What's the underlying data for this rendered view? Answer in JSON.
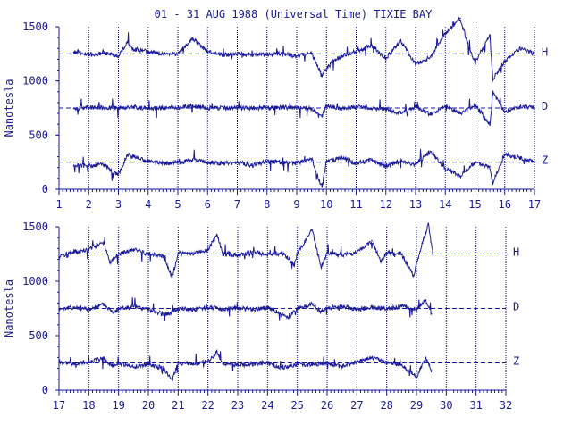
{
  "chart_data": {
    "type": "line",
    "title": "01 - 31 AUG 1988 (Universal Time) TIXIE BAY",
    "ylabel": "Nanotesla",
    "colors": {
      "axis": "#1a1a9a",
      "trace": "#1a1a9a",
      "background": "#ffffff"
    },
    "grid": "vertical-dotted-day-lines",
    "component_labels": [
      "H",
      "D",
      "Z"
    ],
    "baselines_nT": {
      "H": 1250,
      "D": 750,
      "Z": 250
    },
    "panels": [
      {
        "name": "days-1-to-17",
        "xlim": [
          1,
          17
        ],
        "ylim": [
          0,
          1500
        ],
        "x_ticks": [
          "1",
          "2",
          "3",
          "4",
          "5",
          "6",
          "7",
          "8",
          "9",
          "10",
          "11",
          "12",
          "13",
          "14",
          "15",
          "16",
          "17"
        ],
        "y_ticks": [
          "0",
          "500",
          "1000",
          "1500"
        ],
        "series": [
          {
            "name": "H",
            "baseline": 1250,
            "samples": [
              [
                1.5,
                1265
              ],
              [
                2.0,
                1245
              ],
              [
                2.5,
                1255
              ],
              [
                3.0,
                1230
              ],
              [
                3.3,
                1360
              ],
              [
                3.5,
                1290
              ],
              [
                3.8,
                1280
              ],
              [
                4.3,
                1255
              ],
              [
                5.0,
                1250
              ],
              [
                5.5,
                1390
              ],
              [
                6.0,
                1270
              ],
              [
                6.5,
                1240
              ],
              [
                7.0,
                1250
              ],
              [
                7.5,
                1240
              ],
              [
                8.0,
                1245
              ],
              [
                8.5,
                1250
              ],
              [
                9.0,
                1230
              ],
              [
                9.5,
                1255
              ],
              [
                9.85,
                1050
              ],
              [
                9.95,
                1100
              ],
              [
                10.3,
                1200
              ],
              [
                10.8,
                1260
              ],
              [
                11.2,
                1290
              ],
              [
                11.5,
                1330
              ],
              [
                12.0,
                1210
              ],
              [
                12.5,
                1370
              ],
              [
                13.0,
                1150
              ],
              [
                13.5,
                1220
              ],
              [
                14.0,
                1440
              ],
              [
                14.5,
                1580
              ],
              [
                14.8,
                1300
              ],
              [
                15.0,
                1170
              ],
              [
                15.5,
                1420
              ],
              [
                15.6,
                1020
              ],
              [
                16.0,
                1180
              ],
              [
                16.5,
                1300
              ],
              [
                17.0,
                1250
              ]
            ]
          },
          {
            "name": "D",
            "baseline": 750,
            "samples": [
              [
                1.5,
                745
              ],
              [
                2.0,
                755
              ],
              [
                3.0,
                750
              ],
              [
                3.5,
                760
              ],
              [
                4.0,
                745
              ],
              [
                5.0,
                755
              ],
              [
                5.5,
                770
              ],
              [
                6.0,
                750
              ],
              [
                7.0,
                748
              ],
              [
                8.0,
                752
              ],
              [
                9.0,
                755
              ],
              [
                9.5,
                740
              ],
              [
                9.85,
                670
              ],
              [
                10.0,
                770
              ],
              [
                10.5,
                745
              ],
              [
                11.0,
                760
              ],
              [
                12.0,
                740
              ],
              [
                12.5,
                700
              ],
              [
                13.0,
                760
              ],
              [
                13.5,
                690
              ],
              [
                14.0,
                770
              ],
              [
                14.5,
                700
              ],
              [
                15.0,
                780
              ],
              [
                15.5,
                600
              ],
              [
                15.6,
                900
              ],
              [
                16.0,
                710
              ],
              [
                16.5,
                760
              ],
              [
                17.0,
                750
              ]
            ]
          },
          {
            "name": "Z",
            "baseline": 250,
            "samples": [
              [
                1.5,
                215
              ],
              [
                2.0,
                220
              ],
              [
                2.5,
                225
              ],
              [
                3.0,
                130
              ],
              [
                3.3,
                320
              ],
              [
                3.5,
                300
              ],
              [
                4.0,
                260
              ],
              [
                4.5,
                240
              ],
              [
                5.0,
                240
              ],
              [
                5.5,
                270
              ],
              [
                6.0,
                250
              ],
              [
                6.5,
                240
              ],
              [
                7.0,
                250
              ],
              [
                7.5,
                220
              ],
              [
                8.0,
                255
              ],
              [
                8.5,
                250
              ],
              [
                9.0,
                240
              ],
              [
                9.5,
                280
              ],
              [
                9.85,
                20
              ],
              [
                10.0,
                260
              ],
              [
                10.5,
                290
              ],
              [
                11.0,
                240
              ],
              [
                11.5,
                270
              ],
              [
                12.0,
                210
              ],
              [
                12.5,
                260
              ],
              [
                13.0,
                230
              ],
              [
                13.5,
                350
              ],
              [
                14.0,
                190
              ],
              [
                14.5,
                120
              ],
              [
                15.0,
                250
              ],
              [
                15.5,
                210
              ],
              [
                15.6,
                60
              ],
              [
                16.0,
                320
              ],
              [
                16.5,
                290
              ],
              [
                17.0,
                250
              ]
            ]
          }
        ]
      },
      {
        "name": "days-17-to-32",
        "xlim": [
          17,
          32
        ],
        "ylim": [
          0,
          1500
        ],
        "x_ticks": [
          "17",
          "18",
          "19",
          "20",
          "21",
          "22",
          "23",
          "24",
          "25",
          "26",
          "27",
          "28",
          "29",
          "30",
          "31",
          "32"
        ],
        "y_ticks": [
          "0",
          "500",
          "1000",
          "1500"
        ],
        "series": [
          {
            "name": "H",
            "baseline": 1250,
            "samples": [
              [
                17.0,
                1220
              ],
              [
                17.5,
                1270
              ],
              [
                18.0,
                1290
              ],
              [
                18.5,
                1360
              ],
              [
                18.7,
                1170
              ],
              [
                19.0,
                1250
              ],
              [
                19.5,
                1290
              ],
              [
                20.0,
                1250
              ],
              [
                20.5,
                1230
              ],
              [
                20.8,
                1040
              ],
              [
                21.0,
                1260
              ],
              [
                21.5,
                1250
              ],
              [
                22.0,
                1290
              ],
              [
                22.3,
                1430
              ],
              [
                22.5,
                1250
              ],
              [
                23.0,
                1240
              ],
              [
                23.5,
                1270
              ],
              [
                24.0,
                1240
              ],
              [
                24.5,
                1260
              ],
              [
                24.9,
                1150
              ],
              [
                25.0,
                1250
              ],
              [
                25.5,
                1470
              ],
              [
                25.8,
                1130
              ],
              [
                26.0,
                1260
              ],
              [
                26.5,
                1240
              ],
              [
                27.0,
                1260
              ],
              [
                27.5,
                1370
              ],
              [
                27.8,
                1180
              ],
              [
                28.0,
                1260
              ],
              [
                28.5,
                1250
              ],
              [
                28.9,
                1050
              ],
              [
                29.2,
                1350
              ],
              [
                29.4,
                1530
              ],
              [
                29.55,
                1250
              ]
            ]
          },
          {
            "name": "D",
            "baseline": 750,
            "samples": [
              [
                17.0,
                745
              ],
              [
                17.5,
                760
              ],
              [
                18.0,
                740
              ],
              [
                18.5,
                790
              ],
              [
                18.8,
                720
              ],
              [
                19.0,
                750
              ],
              [
                19.5,
                765
              ],
              [
                20.0,
                740
              ],
              [
                20.6,
                690
              ],
              [
                21.0,
                750
              ],
              [
                21.5,
                740
              ],
              [
                22.0,
                760
              ],
              [
                22.5,
                745
              ],
              [
                23.0,
                755
              ],
              [
                23.5,
                740
              ],
              [
                24.0,
                760
              ],
              [
                24.7,
                660
              ],
              [
                25.0,
                750
              ],
              [
                25.5,
                790
              ],
              [
                25.8,
                720
              ],
              [
                26.0,
                750
              ],
              [
                26.5,
                770
              ],
              [
                27.0,
                740
              ],
              [
                27.5,
                760
              ],
              [
                28.0,
                745
              ],
              [
                28.5,
                770
              ],
              [
                29.0,
                745
              ],
              [
                29.3,
                830
              ],
              [
                29.5,
                700
              ]
            ]
          },
          {
            "name": "Z",
            "baseline": 250,
            "samples": [
              [
                17.0,
                250
              ],
              [
                17.5,
                240
              ],
              [
                18.0,
                260
              ],
              [
                18.5,
                290
              ],
              [
                18.8,
                220
              ],
              [
                19.0,
                250
              ],
              [
                19.5,
                210
              ],
              [
                20.0,
                240
              ],
              [
                20.5,
                200
              ],
              [
                20.8,
                100
              ],
              [
                21.0,
                250
              ],
              [
                21.5,
                235
              ],
              [
                22.0,
                260
              ],
              [
                22.3,
                350
              ],
              [
                22.5,
                240
              ],
              [
                23.0,
                230
              ],
              [
                23.5,
                240
              ],
              [
                24.0,
                255
              ],
              [
                24.5,
                200
              ],
              [
                25.0,
                240
              ],
              [
                25.5,
                230
              ],
              [
                26.0,
                250
              ],
              [
                26.5,
                215
              ],
              [
                27.0,
                260
              ],
              [
                27.5,
                300
              ],
              [
                28.0,
                250
              ],
              [
                28.5,
                230
              ],
              [
                29.0,
                120
              ],
              [
                29.3,
                300
              ],
              [
                29.5,
                180
              ]
            ]
          }
        ]
      }
    ]
  }
}
